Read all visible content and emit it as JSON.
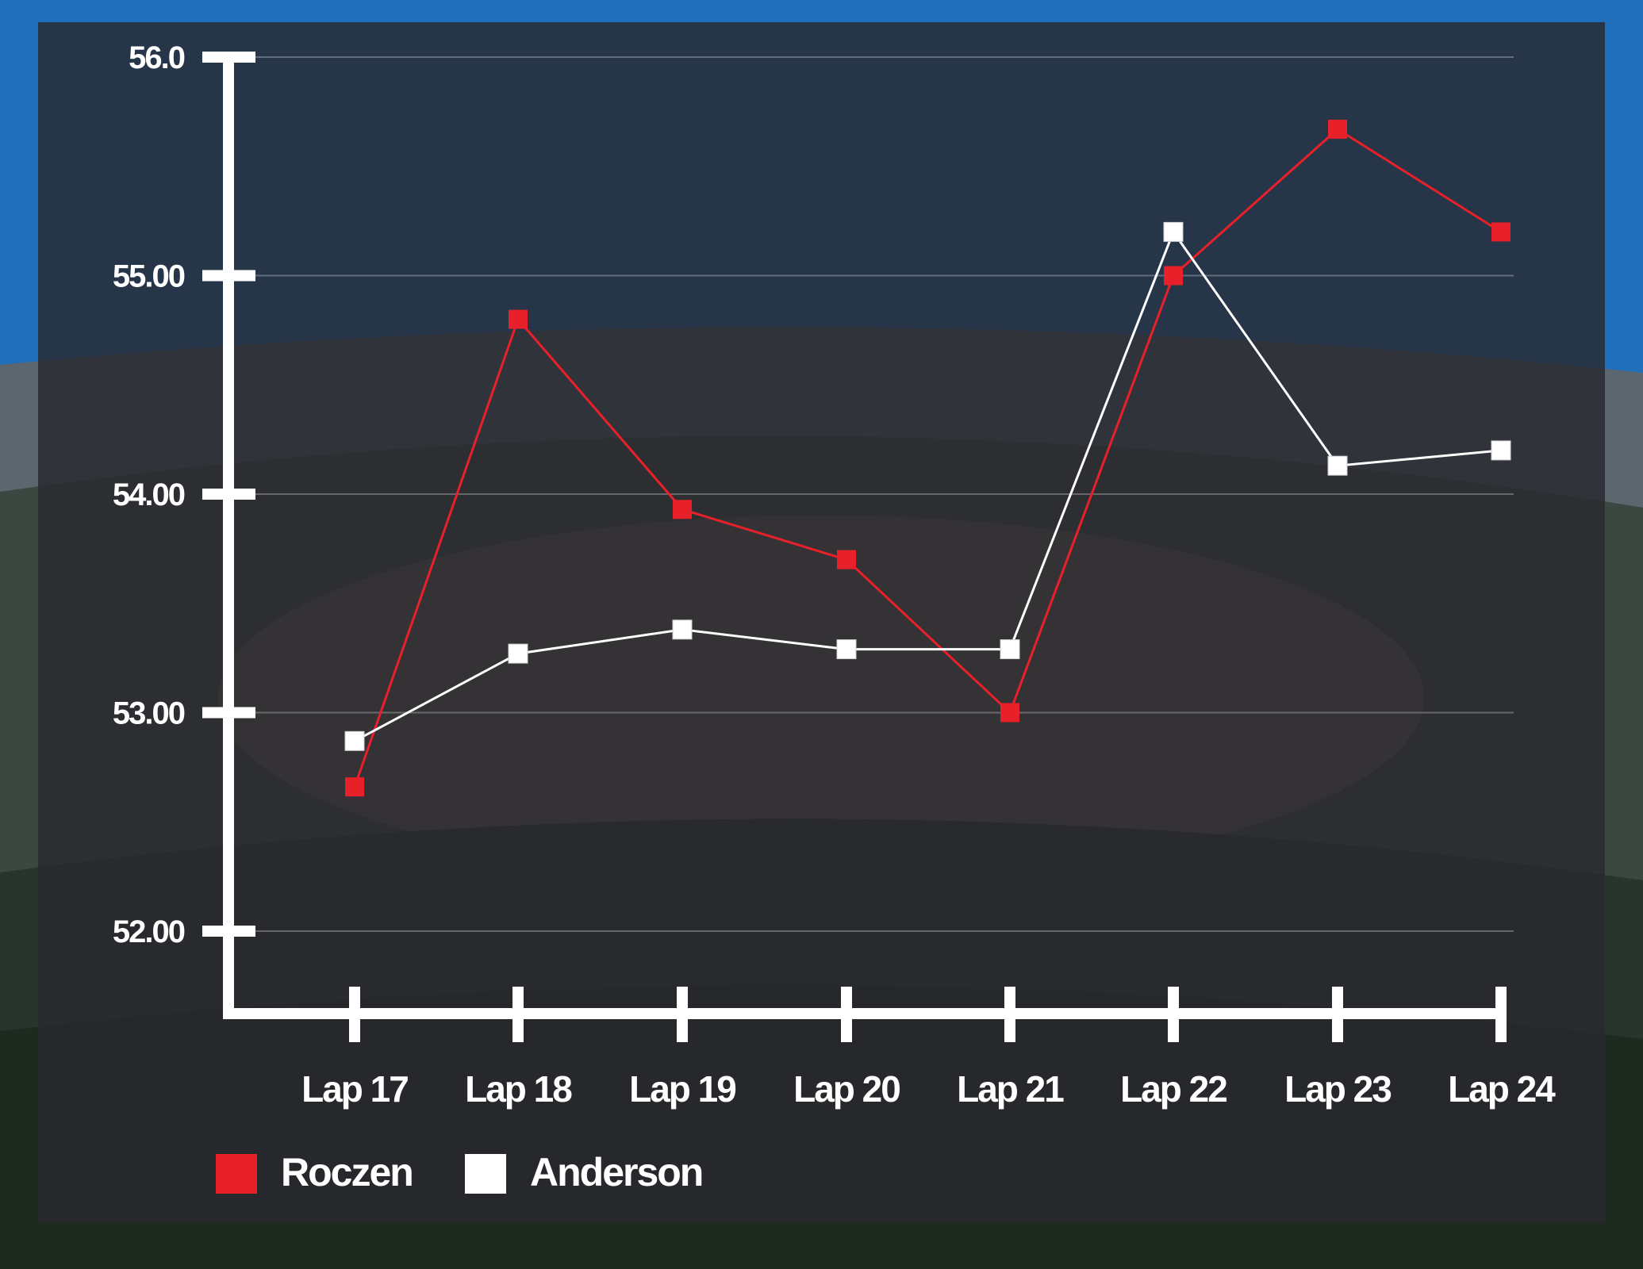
{
  "chart_data": {
    "type": "line",
    "categories": [
      "Lap 17",
      "Lap 18",
      "Lap 19",
      "Lap 20",
      "Lap 21",
      "Lap 22",
      "Lap 23",
      "Lap 24"
    ],
    "series": [
      {
        "name": "Roczen",
        "color": "#e8202a",
        "values": [
          52.66,
          54.8,
          53.93,
          53.7,
          53.0,
          55.0,
          55.67,
          55.2
        ]
      },
      {
        "name": "Anderson",
        "color": "#ffffff",
        "values": [
          52.87,
          53.27,
          53.38,
          53.29,
          53.29,
          55.2,
          54.13,
          54.2
        ]
      }
    ],
    "y_ticks": [
      {
        "value": 52,
        "label": "52.00"
      },
      {
        "value": 53,
        "label": "53.00"
      },
      {
        "value": 54,
        "label": "54.00"
      },
      {
        "value": 55,
        "label": "55.00"
      },
      {
        "value": 56,
        "label": "56.0"
      }
    ],
    "ylim": [
      52,
      56
    ],
    "title": "",
    "xlabel": "",
    "ylabel": "",
    "grid": true,
    "legend_position": "bottom-left",
    "background": "stadium photo"
  }
}
